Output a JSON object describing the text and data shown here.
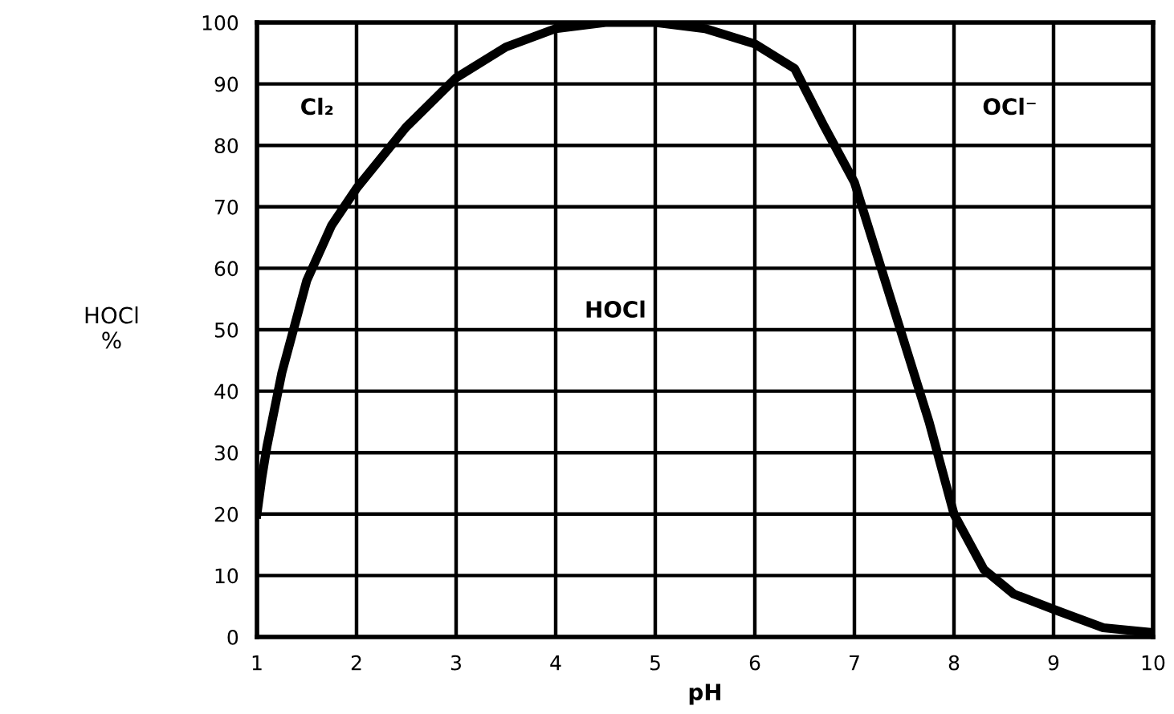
{
  "chart_data": {
    "type": "line",
    "xlabel": "pH",
    "ylabel": "HOCl\n%",
    "x": [
      1.0,
      1.05,
      1.1,
      1.25,
      1.5,
      1.75,
      2.0,
      2.5,
      3.0,
      3.5,
      4.0,
      4.5,
      5.0,
      5.5,
      6.0,
      6.4,
      6.7,
      7.0,
      7.25,
      7.5,
      7.75,
      8.0,
      8.3,
      8.6,
      9.0,
      9.5,
      10.0
    ],
    "series": [
      {
        "color": "#000000",
        "values": [
          20,
          26,
          31,
          43,
          58,
          67,
          73,
          83,
          91,
          96,
          99,
          100,
          100,
          99,
          96.5,
          92.5,
          83,
          74,
          61,
          48,
          35,
          20,
          11,
          7,
          4.5,
          1.5,
          0.7
        ]
      }
    ],
    "xlim": [
      1,
      10
    ],
    "ylim": [
      0,
      100
    ],
    "xticks": [
      1,
      2,
      3,
      4,
      5,
      6,
      7,
      8,
      9,
      10
    ],
    "yticks": [
      0,
      10,
      20,
      30,
      40,
      50,
      60,
      70,
      80,
      90,
      100
    ],
    "grid": true,
    "marker": "none",
    "line_style": "solid",
    "annotations": [
      "Cl₂",
      "HOCl",
      "OCl⁻"
    ]
  }
}
